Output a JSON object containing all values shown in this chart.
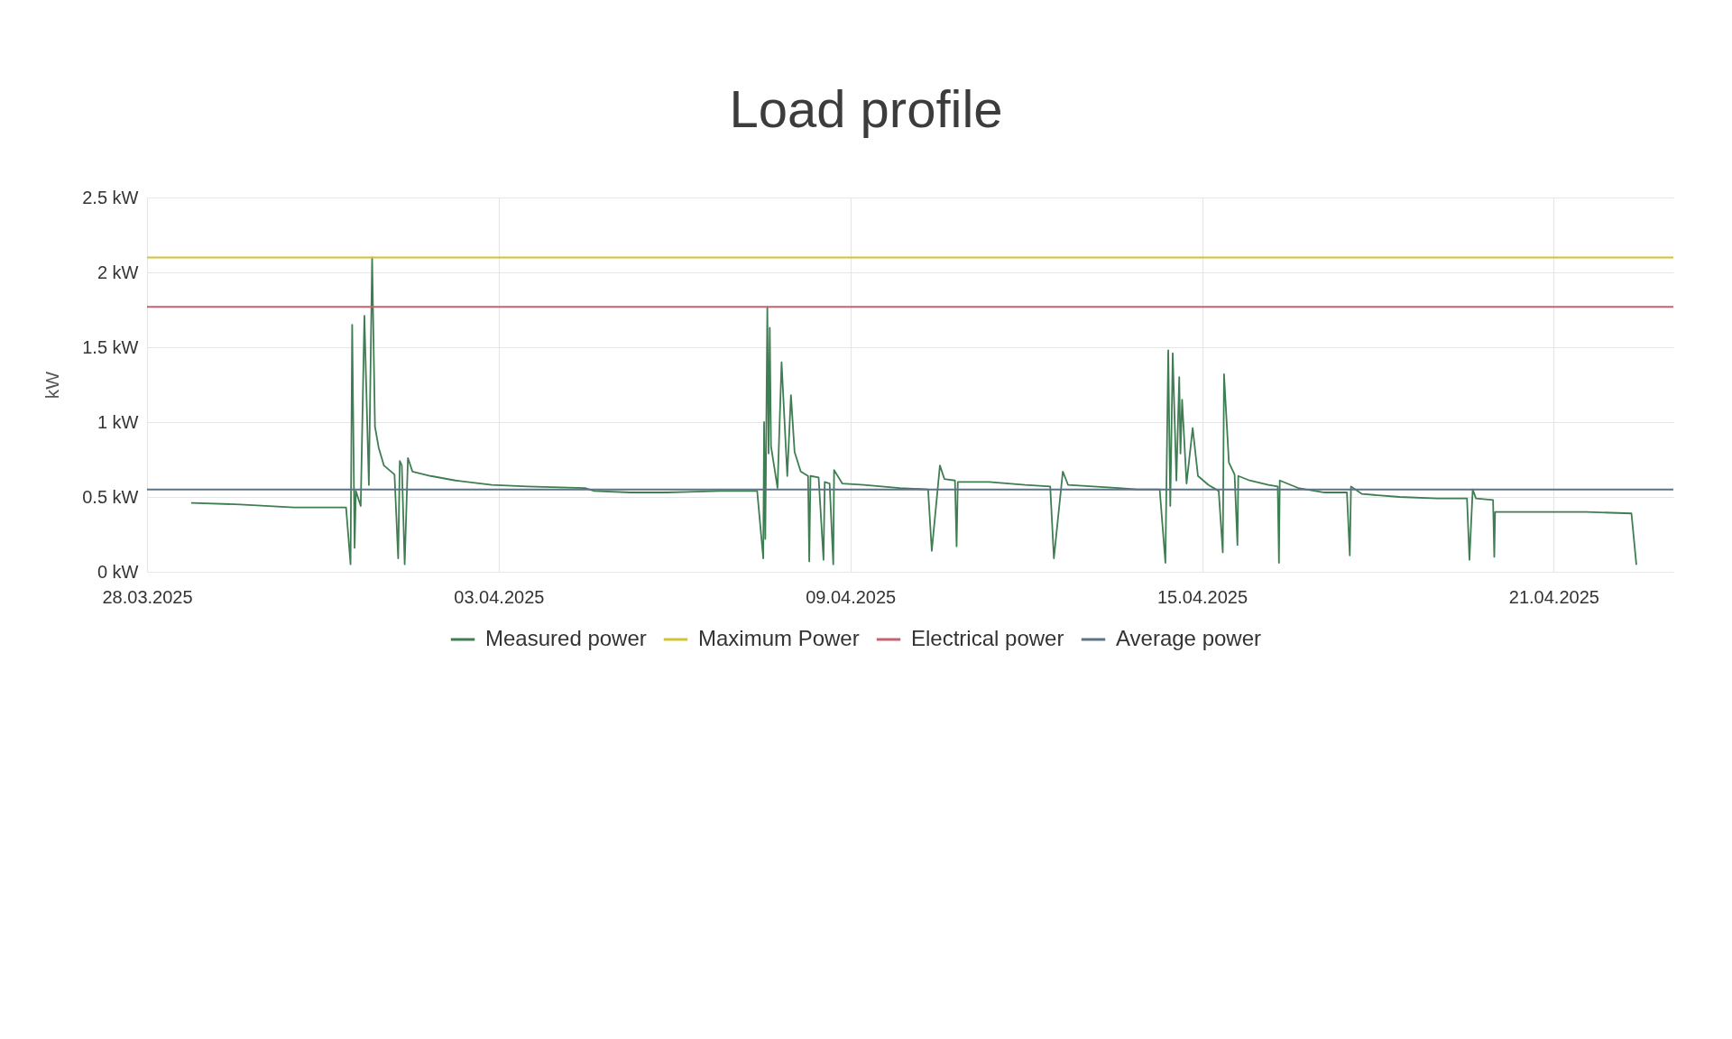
{
  "chart_data": {
    "type": "line",
    "title": "Load profile",
    "ylabel": "kW",
    "xlim": [
      "2025-03-28",
      "2025-04-23T01:00"
    ],
    "xticks": [
      {
        "value": "2025-03-28",
        "label": "28.03.2025"
      },
      {
        "value": "2025-04-03",
        "label": "03.04.2025"
      },
      {
        "value": "2025-04-09",
        "label": "09.04.2025"
      },
      {
        "value": "2025-04-15",
        "label": "15.04.2025"
      },
      {
        "value": "2025-04-21",
        "label": "21.04.2025"
      }
    ],
    "ylim": [
      0,
      2.5
    ],
    "yticks": [
      {
        "value": 0,
        "label": "0 kW"
      },
      {
        "value": 0.5,
        "label": "0.5 kW"
      },
      {
        "value": 1,
        "label": "1 kW"
      },
      {
        "value": 1.5,
        "label": "1.5 kW"
      },
      {
        "value": 2,
        "label": "2 kW"
      },
      {
        "value": 2.5,
        "label": "2.5 kW"
      }
    ],
    "grid": true,
    "legend": "bottom",
    "series": [
      {
        "name": "Measured power",
        "color": "#3f7d52",
        "x": [
          "2025-03-28T18:20",
          "2025-03-29T14:10",
          "2025-03-30T12:10",
          "2025-03-31T08:50",
          "2025-03-31T09:30",
          "2025-03-31T11:20",
          "2025-03-31T12:00",
          "2025-03-31T13:00",
          "2025-03-31T13:30",
          "2025-03-31T15:30",
          "2025-03-31T17:00",
          "2025-03-31T18:50",
          "2025-03-31T20:10",
          "2025-03-31T21:20",
          "2025-03-31T22:50",
          "2025-04-01T01:00",
          "2025-04-01T05:20",
          "2025-04-01T06:50",
          "2025-04-01T07:30",
          "2025-04-01T08:20",
          "2025-04-01T09:30",
          "2025-04-01T10:50",
          "2025-04-01T12:40",
          "2025-04-01T20:10",
          "2025-04-02T06:20",
          "2025-04-02T21:10",
          "2025-04-03T11:50",
          "2025-04-04T11:20",
          "2025-04-04T15:10",
          "2025-04-05T05:50",
          "2025-04-05T20:40",
          "2025-04-06T18:40",
          "2025-04-07T09:50",
          "2025-04-07T12:20",
          "2025-04-07T12:40",
          "2025-04-07T13:10",
          "2025-04-07T14:00",
          "2025-04-07T14:30",
          "2025-04-07T15:00",
          "2025-04-07T15:30",
          "2025-04-07T18:10",
          "2025-04-07T19:50",
          "2025-04-07T22:10",
          "2025-04-07T23:40",
          "2025-04-08T01:10",
          "2025-04-08T03:40",
          "2025-04-08T06:40",
          "2025-04-08T07:10",
          "2025-04-08T07:40",
          "2025-04-08T11:00",
          "2025-04-08T13:00",
          "2025-04-08T13:30",
          "2025-04-08T15:30",
          "2025-04-08T17:00",
          "2025-04-08T17:20",
          "2025-04-08T20:40",
          "2025-04-09T05:30",
          "2025-04-09T20:10",
          "2025-04-10T07:50",
          "2025-04-10T09:20",
          "2025-04-10T12:40",
          "2025-04-10T14:30",
          "2025-04-10T18:50",
          "2025-04-10T19:30",
          "2025-04-10T20:00",
          "2025-04-11T08:50",
          "2025-04-11T23:30",
          "2025-04-12T09:50",
          "2025-04-12T11:20",
          "2025-04-12T15:00",
          "2025-04-12T17:10",
          "2025-04-13T13:50",
          "2025-04-13T21:30",
          "2025-04-14T06:40",
          "2025-04-14T09:00",
          "2025-04-14T10:10",
          "2025-04-14T11:00",
          "2025-04-14T12:00",
          "2025-04-14T13:30",
          "2025-04-14T14:40",
          "2025-04-14T15:10",
          "2025-04-14T15:50",
          "2025-04-14T17:40",
          "2025-04-14T20:10",
          "2025-04-14T22:20",
          "2025-04-15T02:40",
          "2025-04-15T06:50",
          "2025-04-15T08:30",
          "2025-04-15T09:00",
          "2025-04-15T11:00",
          "2025-04-15T13:20",
          "2025-04-15T14:30",
          "2025-04-15T14:50",
          "2025-04-15T19:30",
          "2025-04-16T03:10",
          "2025-04-16T07:00",
          "2025-04-16T07:30",
          "2025-04-16T07:50",
          "2025-04-16T15:20",
          "2025-04-17T02:10",
          "2025-04-17T11:20",
          "2025-04-17T12:30",
          "2025-04-17T13:00",
          "2025-04-17T17:30",
          "2025-04-18T08:50",
          "2025-04-19T00:10",
          "2025-04-19T12:30",
          "2025-04-19T13:30",
          "2025-04-19T14:50",
          "2025-04-19T16:10",
          "2025-04-19T23:10",
          "2025-04-19T23:40",
          "2025-04-20T00:00",
          "2025-04-20T14:30",
          "2025-04-21T13:30",
          "2025-04-22T07:50",
          "2025-04-22T09:50"
        ],
        "values": [
          0.46,
          0.45,
          0.43,
          0.43,
          0.43,
          0.05,
          1.65,
          0.16,
          0.54,
          0.44,
          1.71,
          0.58,
          2.1,
          0.97,
          0.83,
          0.71,
          0.65,
          0.09,
          0.74,
          0.71,
          0.05,
          0.76,
          0.67,
          0.64,
          0.61,
          0.58,
          0.57,
          0.56,
          0.54,
          0.53,
          0.53,
          0.54,
          0.54,
          0.09,
          1.0,
          0.22,
          1.77,
          0.79,
          1.63,
          0.84,
          0.56,
          1.4,
          0.64,
          1.18,
          0.8,
          0.67,
          0.64,
          0.07,
          0.64,
          0.63,
          0.08,
          0.6,
          0.59,
          0.05,
          0.68,
          0.59,
          0.58,
          0.56,
          0.55,
          0.14,
          0.71,
          0.62,
          0.61,
          0.17,
          0.6,
          0.6,
          0.58,
          0.57,
          0.09,
          0.67,
          0.58,
          0.56,
          0.55,
          0.55,
          0.06,
          1.48,
          0.44,
          1.46,
          0.61,
          1.3,
          0.79,
          1.15,
          0.59,
          0.96,
          0.64,
          0.58,
          0.54,
          0.13,
          1.32,
          0.73,
          0.65,
          0.18,
          0.64,
          0.61,
          0.58,
          0.57,
          0.06,
          0.61,
          0.56,
          0.53,
          0.53,
          0.11,
          0.57,
          0.52,
          0.5,
          0.49,
          0.49,
          0.08,
          0.55,
          0.49,
          0.48,
          0.1,
          0.4,
          0.4,
          0.4,
          0.39,
          0.05
        ]
      }
    ],
    "ref_lines": [
      {
        "axis": "y",
        "value": 2.1,
        "label": "Maximum Power",
        "color": "#d4c235"
      },
      {
        "axis": "y",
        "value": 1.77,
        "label": "Electrical power",
        "color": "#c4636f"
      },
      {
        "axis": "y",
        "value": 0.55,
        "label": "Average power",
        "color": "#5d7383"
      }
    ]
  }
}
